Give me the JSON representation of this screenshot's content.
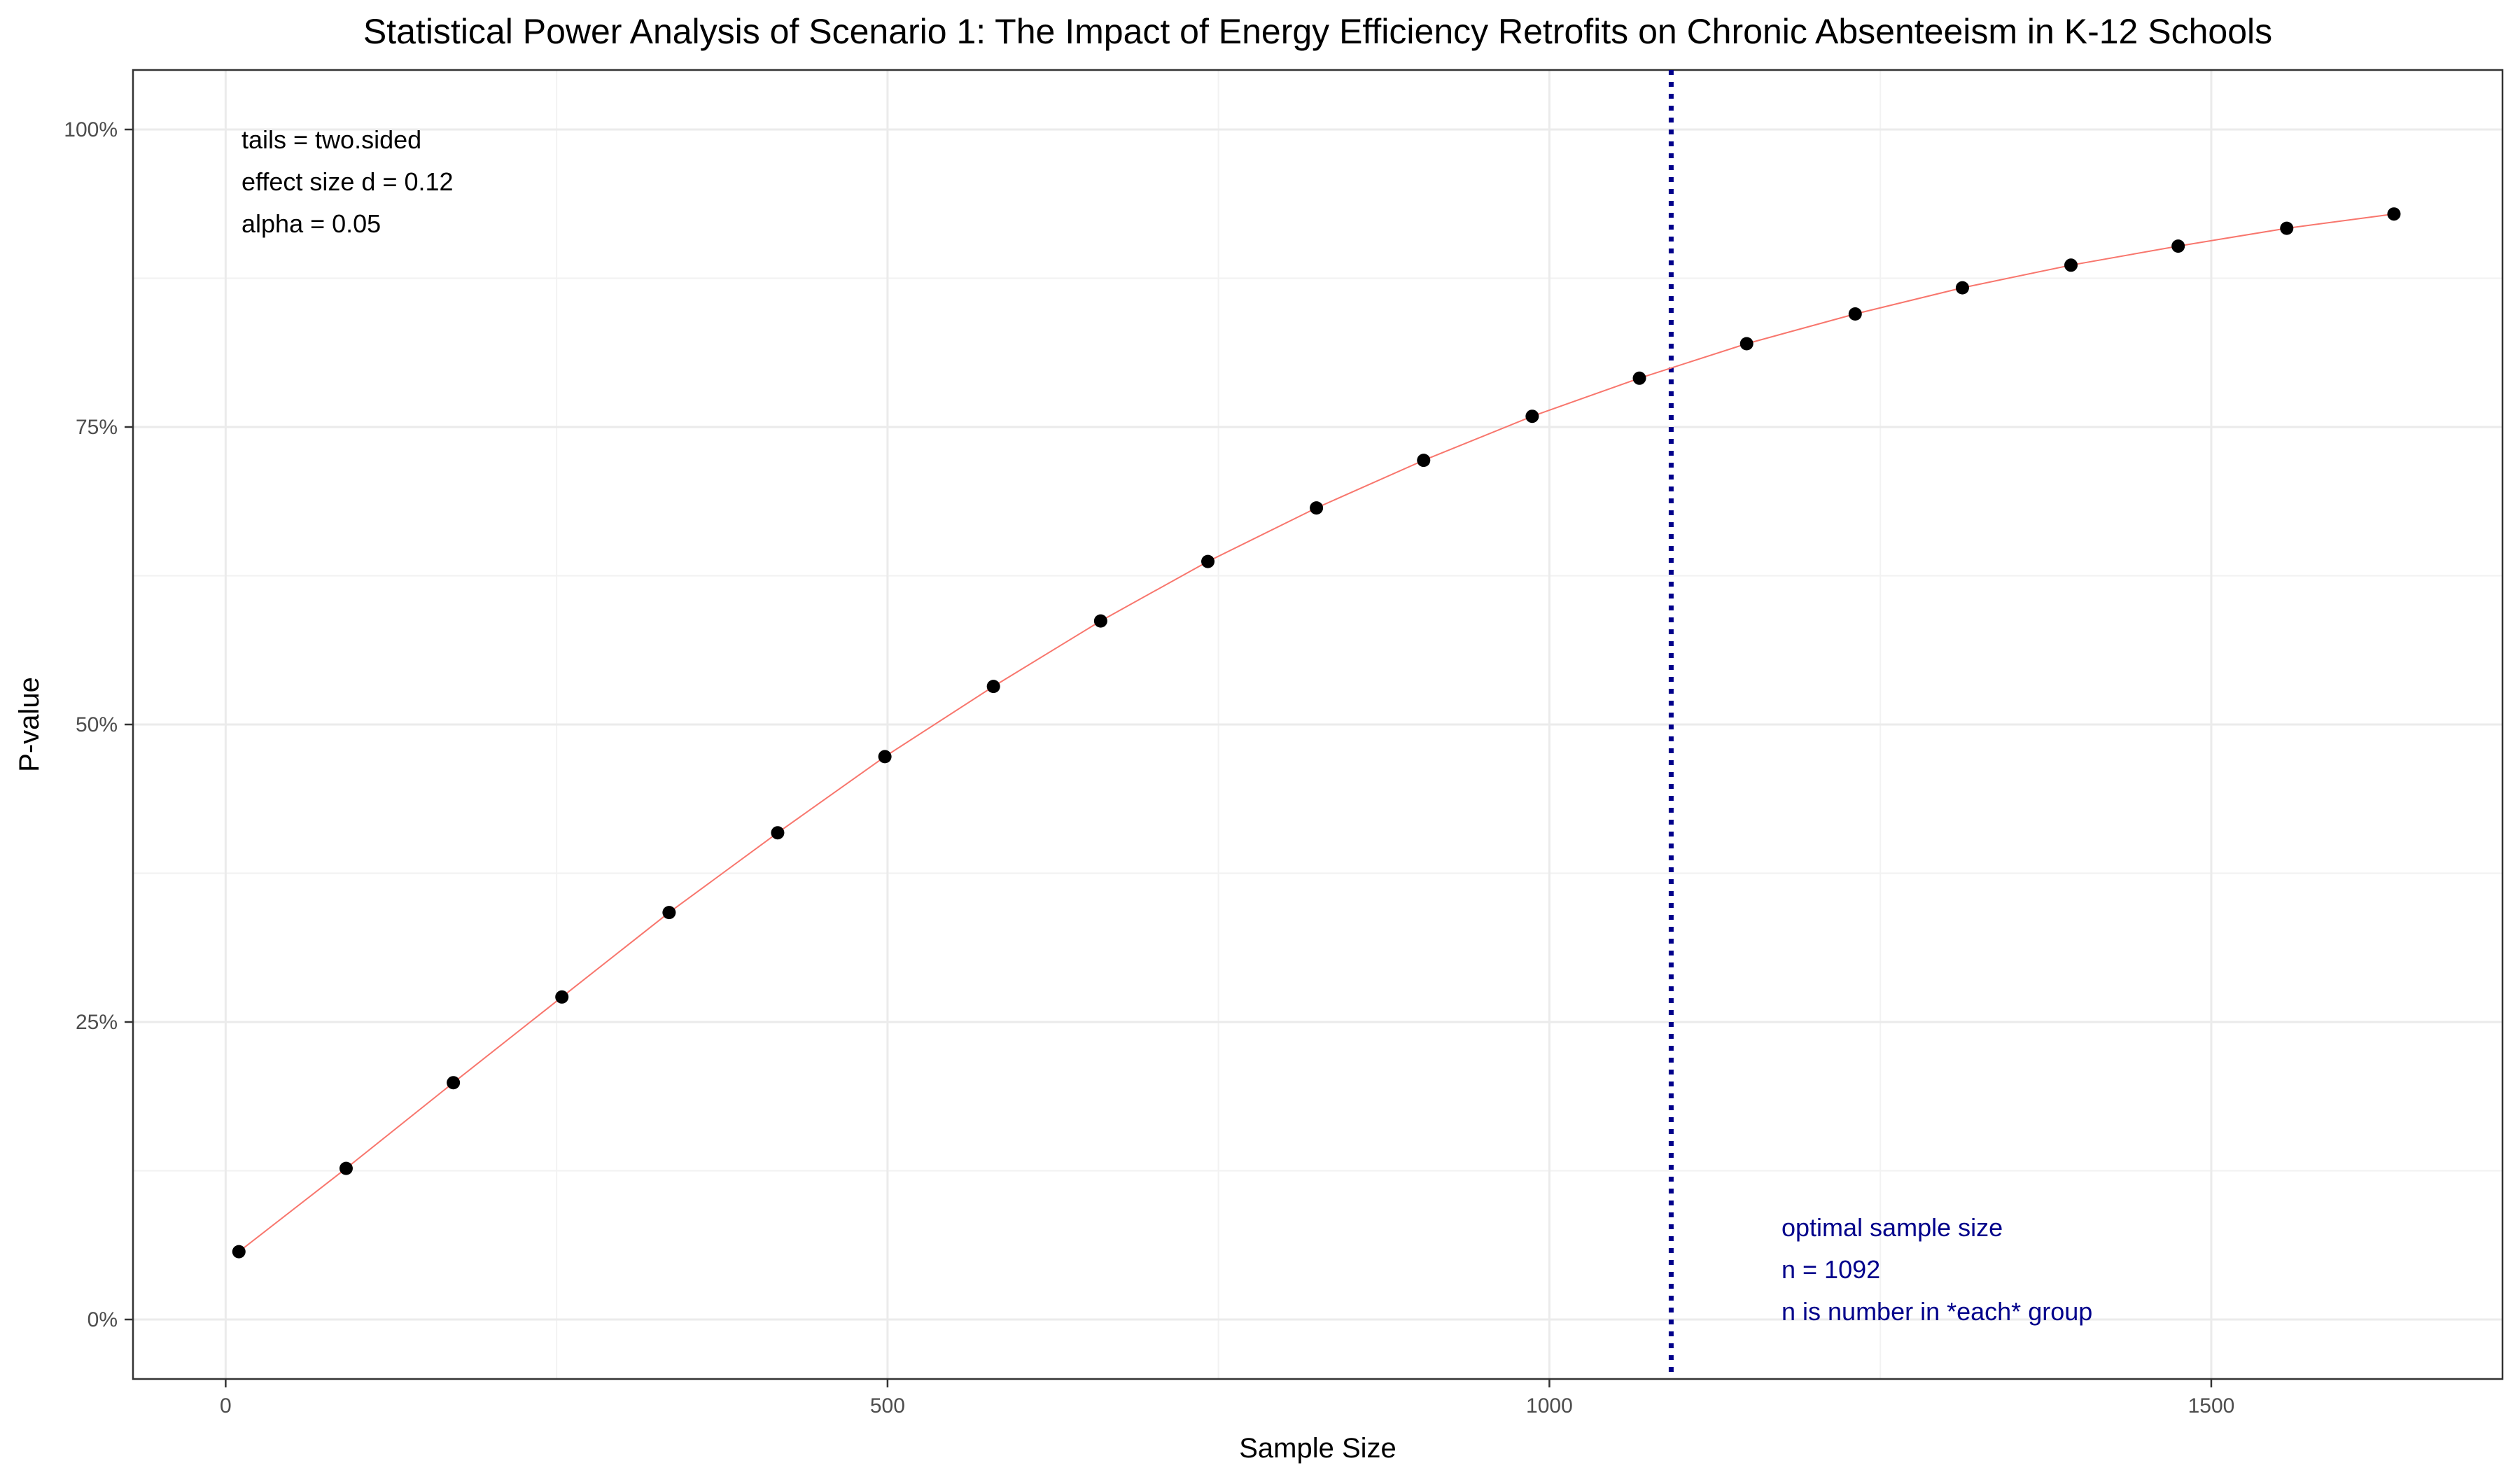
{
  "chart_data": {
    "type": "line",
    "title": "Statistical Power Analysis of Scenario 1: The Impact of Energy Efficiency Retrofits on Chronic Absenteeism in K-12 Schools",
    "xlabel": "Sample Size",
    "ylabel": "P-value",
    "xlim": [
      -70,
      1720
    ],
    "ylim": [
      -0.05,
      1.05
    ],
    "x_ticks": [
      0,
      500,
      1000,
      1500
    ],
    "x_tick_labels": [
      "0",
      "500",
      "1000",
      "1500"
    ],
    "y_ticks": [
      0,
      0.25,
      0.5,
      0.75,
      1.0
    ],
    "y_tick_labels": [
      "0%",
      "25%",
      "50%",
      "75%",
      "100%"
    ],
    "grid": true,
    "series": [
      {
        "x": [
          10,
          91,
          172,
          254,
          335,
          417,
          498,
          580,
          661,
          742,
          824,
          905,
          987,
          1068,
          1149,
          1231,
          1312,
          1394,
          1475,
          1557,
          1638
        ],
        "y": [
          0.057,
          0.127,
          0.199,
          0.271,
          0.342,
          0.409,
          0.473,
          0.532,
          0.587,
          0.637,
          0.682,
          0.722,
          0.759,
          0.791,
          0.82,
          0.845,
          0.867,
          0.886,
          0.902,
          0.917,
          0.929
        ],
        "line_color": "#f8766d",
        "point_color": "#000000"
      }
    ],
    "vline": {
      "x": 1092,
      "color": "#00008b",
      "style": "dotted"
    },
    "annotations": {
      "params": [
        "tails = two.sided",
        "effect size d = 0.12",
        "alpha = 0.05"
      ],
      "optimal": [
        "optimal sample size",
        "n = 1092",
        "n is number in *each* group"
      ]
    }
  }
}
